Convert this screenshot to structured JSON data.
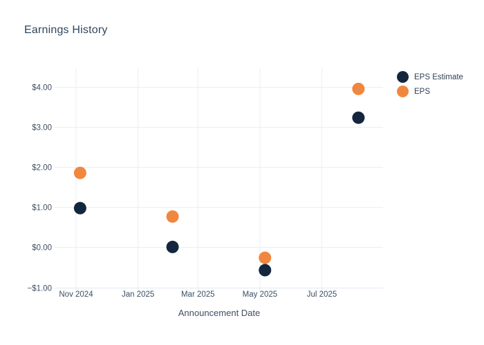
{
  "page": {
    "background": "#ffffff"
  },
  "chart": {
    "title": "Earnings History",
    "xlabel": "Announcement Date",
    "legend": [
      {
        "label": "EPS Estimate",
        "color": "#14263e"
      },
      {
        "label": "EPS",
        "color": "#f1873f"
      }
    ]
  },
  "chart_data": {
    "type": "scatter",
    "title": "Earnings History",
    "xlabel": "Announcement Date",
    "ylabel": "",
    "grid": true,
    "legend_position": "right",
    "marker_radius": 9,
    "ylim": [
      -1,
      4.48
    ],
    "y_ticks": [
      {
        "label": "$4.00",
        "value": 4
      },
      {
        "label": "$3.00",
        "value": 3
      },
      {
        "label": "$2.00",
        "value": 2
      },
      {
        "label": "$1.00",
        "value": 1
      },
      {
        "label": "$0.00",
        "value": 0
      },
      {
        "label": "−$1.00",
        "value": -1
      }
    ],
    "x_ticks": [
      {
        "label": "Nov 2024",
        "date": "2024-11-01"
      },
      {
        "label": "Jan 2025",
        "date": "2025-01-01"
      },
      {
        "label": "Mar 2025",
        "date": "2025-03-01"
      },
      {
        "label": "May 2025",
        "date": "2025-05-01"
      },
      {
        "label": "Jul 2025",
        "date": "2025-07-01"
      }
    ],
    "x_anchor_dates": [
      "2024-11-01",
      "2025-07-01"
    ],
    "series": [
      {
        "name": "EPS Estimate",
        "color": "#14263e",
        "points": [
          {
            "date": "2024-11-05",
            "value": 0.98
          },
          {
            "date": "2025-02-04",
            "value": 0.01
          },
          {
            "date": "2025-05-06",
            "value": -0.57
          },
          {
            "date": "2025-08-06",
            "value": 3.24
          }
        ]
      },
      {
        "name": "EPS",
        "color": "#f1873f",
        "points": [
          {
            "date": "2024-11-05",
            "value": 1.86
          },
          {
            "date": "2025-02-04",
            "value": 0.77
          },
          {
            "date": "2025-05-06",
            "value": -0.26
          },
          {
            "date": "2025-08-06",
            "value": 3.96
          }
        ]
      }
    ],
    "colors": {
      "grid": "#e9eef7",
      "axis_line": "#e3eaf3",
      "tick_text": "#3e4e63",
      "title_text": "#2f455e"
    }
  }
}
